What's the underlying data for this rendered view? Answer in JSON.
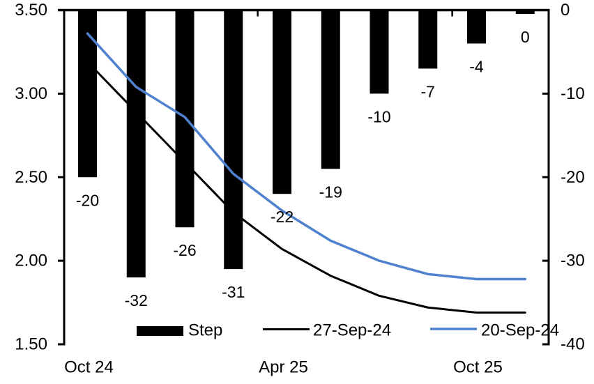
{
  "chart_data": {
    "type": "combo",
    "title": "",
    "grid": "off",
    "legend_position": "bottom-inside",
    "x_axis": {
      "tick_labels": [
        {
          "label": "Oct 24",
          "point_index": 0
        },
        {
          "label": "Apr 25",
          "point_index": 4
        },
        {
          "label": "Oct 25",
          "point_index": 8
        }
      ],
      "num_points": 10
    },
    "left_y_axis": {
      "min": 1.5,
      "max": 3.5,
      "ticks": [
        "3.50",
        "3.00",
        "2.50",
        "2.00",
        "1.50"
      ]
    },
    "right_y_axis": {
      "min": -40,
      "max": 0,
      "ticks": [
        "0",
        "-10",
        "-20",
        "-30",
        "-40"
      ]
    },
    "series": [
      {
        "name": "Step",
        "type": "bar",
        "axis": "right",
        "color": "#000000",
        "values": [
          -20,
          -32,
          -26,
          -31,
          -22,
          -19,
          -10,
          -7,
          -4,
          0
        ],
        "data_labels": [
          "-20",
          "-32",
          "-26",
          "-31",
          "-22",
          "-19",
          "-10",
          "-7",
          "-4",
          "0"
        ]
      },
      {
        "name": "27-Sep-24",
        "type": "line",
        "axis": "left",
        "color": "#000000",
        "values": [
          3.19,
          2.89,
          2.59,
          2.29,
          2.07,
          1.91,
          1.79,
          1.72,
          1.69,
          1.69
        ]
      },
      {
        "name": "20-Sep-24",
        "type": "line",
        "axis": "left",
        "color": "#4F81CE",
        "values": [
          3.36,
          3.04,
          2.86,
          2.52,
          2.3,
          2.12,
          2.0,
          1.92,
          1.89,
          1.89
        ]
      }
    ]
  }
}
